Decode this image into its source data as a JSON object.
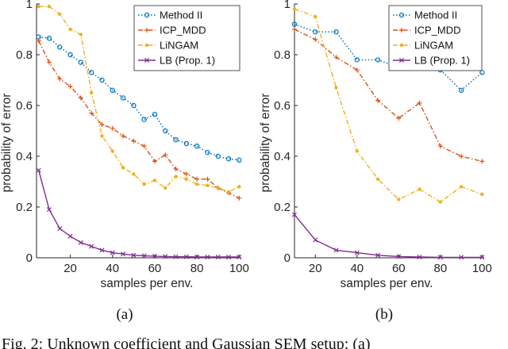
{
  "caption": "Fig. 2: Unknown coefficient and Gaussian SEM setup: (a)",
  "chart_data": [
    {
      "type": "line",
      "panel_label": "(a)",
      "xlabel": "samples per env.",
      "ylabel": "probability of error",
      "xlim": [
        4,
        101
      ],
      "ylim": [
        0,
        1
      ],
      "xticks": [
        20,
        40,
        60,
        80,
        100
      ],
      "yticks": [
        0,
        0.2,
        0.4,
        0.6,
        0.8,
        1
      ],
      "legend_position": "top-right",
      "series": [
        {
          "name": "Method II",
          "color": "#0072BD",
          "style": "dotted",
          "marker": "circle",
          "x": [
            5,
            10,
            15,
            20,
            25,
            30,
            35,
            40,
            45,
            50,
            55,
            60,
            65,
            70,
            75,
            80,
            85,
            90,
            95,
            100
          ],
          "y": [
            0.87,
            0.865,
            0.83,
            0.8,
            0.77,
            0.73,
            0.7,
            0.66,
            0.63,
            0.6,
            0.545,
            0.565,
            0.5,
            0.465,
            0.45,
            0.44,
            0.415,
            0.4,
            0.39,
            0.385
          ]
        },
        {
          "name": "ICP_MDD",
          "color": "#D95319",
          "style": "dashdot",
          "marker": "plus",
          "x": [
            5,
            10,
            15,
            20,
            25,
            30,
            35,
            40,
            45,
            50,
            55,
            60,
            65,
            70,
            75,
            80,
            85,
            90,
            95,
            100
          ],
          "y": [
            0.855,
            0.77,
            0.705,
            0.675,
            0.63,
            0.57,
            0.525,
            0.51,
            0.48,
            0.46,
            0.44,
            0.38,
            0.405,
            0.35,
            0.33,
            0.31,
            0.31,
            0.275,
            0.255,
            0.235
          ]
        },
        {
          "name": "LiNGAM",
          "color": "#EDB120",
          "style": "dashdot",
          "marker": "dot",
          "x": [
            5,
            10,
            15,
            20,
            25,
            30,
            35,
            40,
            45,
            50,
            55,
            60,
            65,
            70,
            75,
            80,
            85,
            90,
            95,
            100
          ],
          "y": [
            0.99,
            0.99,
            0.96,
            0.9,
            0.88,
            0.65,
            0.48,
            0.42,
            0.355,
            0.33,
            0.29,
            0.305,
            0.275,
            0.32,
            0.31,
            0.29,
            0.285,
            0.275,
            0.26,
            0.28
          ]
        },
        {
          "name": "LB (Prop. 1)",
          "color": "#7E2F8E",
          "style": "solid",
          "marker": "x",
          "x": [
            5,
            10,
            15,
            20,
            25,
            30,
            35,
            40,
            45,
            50,
            55,
            60,
            65,
            70,
            75,
            80,
            85,
            90,
            95,
            100
          ],
          "y": [
            0.345,
            0.19,
            0.115,
            0.085,
            0.06,
            0.045,
            0.03,
            0.02,
            0.015,
            0.01,
            0.008,
            0.006,
            0.005,
            0.004,
            0.004,
            0.003,
            0.003,
            0.003,
            0.003,
            0.003
          ]
        }
      ]
    },
    {
      "type": "line",
      "panel_label": "(b)",
      "xlabel": "samples per env.",
      "ylabel": "probability of error",
      "xlim": [
        10,
        101
      ],
      "ylim": [
        0,
        1
      ],
      "xticks": [
        20,
        40,
        60,
        80,
        100
      ],
      "yticks": [
        0,
        0.2,
        0.4,
        0.6,
        0.8,
        1
      ],
      "legend_position": "top-right",
      "series": [
        {
          "name": "Method II",
          "color": "#0072BD",
          "style": "dotted",
          "marker": "circle",
          "x": [
            10,
            20,
            30,
            40,
            50,
            60,
            70,
            80,
            90,
            100
          ],
          "y": [
            0.92,
            0.89,
            0.89,
            0.78,
            0.78,
            0.75,
            0.8,
            0.74,
            0.66,
            0.73
          ]
        },
        {
          "name": "ICP_MDD",
          "color": "#D95319",
          "style": "dashdot",
          "marker": "plus",
          "x": [
            10,
            20,
            30,
            40,
            50,
            60,
            70,
            80,
            90,
            100
          ],
          "y": [
            0.9,
            0.86,
            0.79,
            0.74,
            0.62,
            0.55,
            0.61,
            0.44,
            0.4,
            0.38
          ]
        },
        {
          "name": "LiNGAM",
          "color": "#EDB120",
          "style": "dashdot",
          "marker": "dot",
          "x": [
            10,
            20,
            30,
            40,
            50,
            60,
            70,
            80,
            90,
            100
          ],
          "y": [
            0.98,
            0.95,
            0.67,
            0.42,
            0.31,
            0.23,
            0.27,
            0.22,
            0.28,
            0.25
          ]
        },
        {
          "name": "LB (Prop. 1)",
          "color": "#7E2F8E",
          "style": "solid",
          "marker": "x",
          "x": [
            10,
            20,
            30,
            40,
            50,
            60,
            70,
            80,
            90,
            100
          ],
          "y": [
            0.17,
            0.07,
            0.03,
            0.02,
            0.01,
            0.005,
            0.003,
            0.002,
            0.002,
            0.002
          ]
        }
      ]
    }
  ]
}
